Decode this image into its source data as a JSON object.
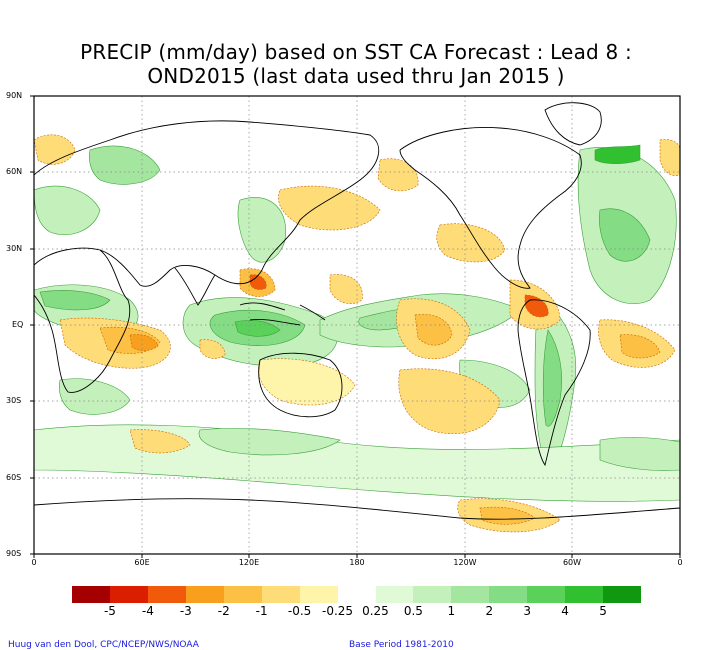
{
  "title": {
    "line1": "PRECIP (mm/day) based on SST CA Forecast : Lead 8 :",
    "line2": "OND2015 (last data used thru Jan 2015 )"
  },
  "axes": {
    "lat_labels": [
      "90N",
      "60N",
      "30N",
      "EQ",
      "30S",
      "60S",
      "90S"
    ],
    "lon_labels": [
      "0",
      "60E",
      "120E",
      "180",
      "120W",
      "60W",
      "0"
    ]
  },
  "legend": {
    "tick_labels": [
      "-5",
      "-4",
      "-3",
      "-2",
      "-1",
      "-0.5",
      "-0.25",
      "0.25",
      "0.5",
      "1",
      "2",
      "3",
      "4",
      "5"
    ],
    "colors": [
      "#a50000",
      "#dc1e00",
      "#f05a0a",
      "#f8a01e",
      "#fcc044",
      "#fedc78",
      "#fff5aa",
      "#ffffff",
      "#e0fad8",
      "#c4f0bc",
      "#a4e6a0",
      "#84dc84",
      "#5ad25a",
      "#30c030",
      "#109810"
    ]
  },
  "footer": {
    "credit": "Huug van den Dool, CPC/NCEP/NWS/NOAA",
    "base_period": "Base Period 1981-2010"
  }
}
